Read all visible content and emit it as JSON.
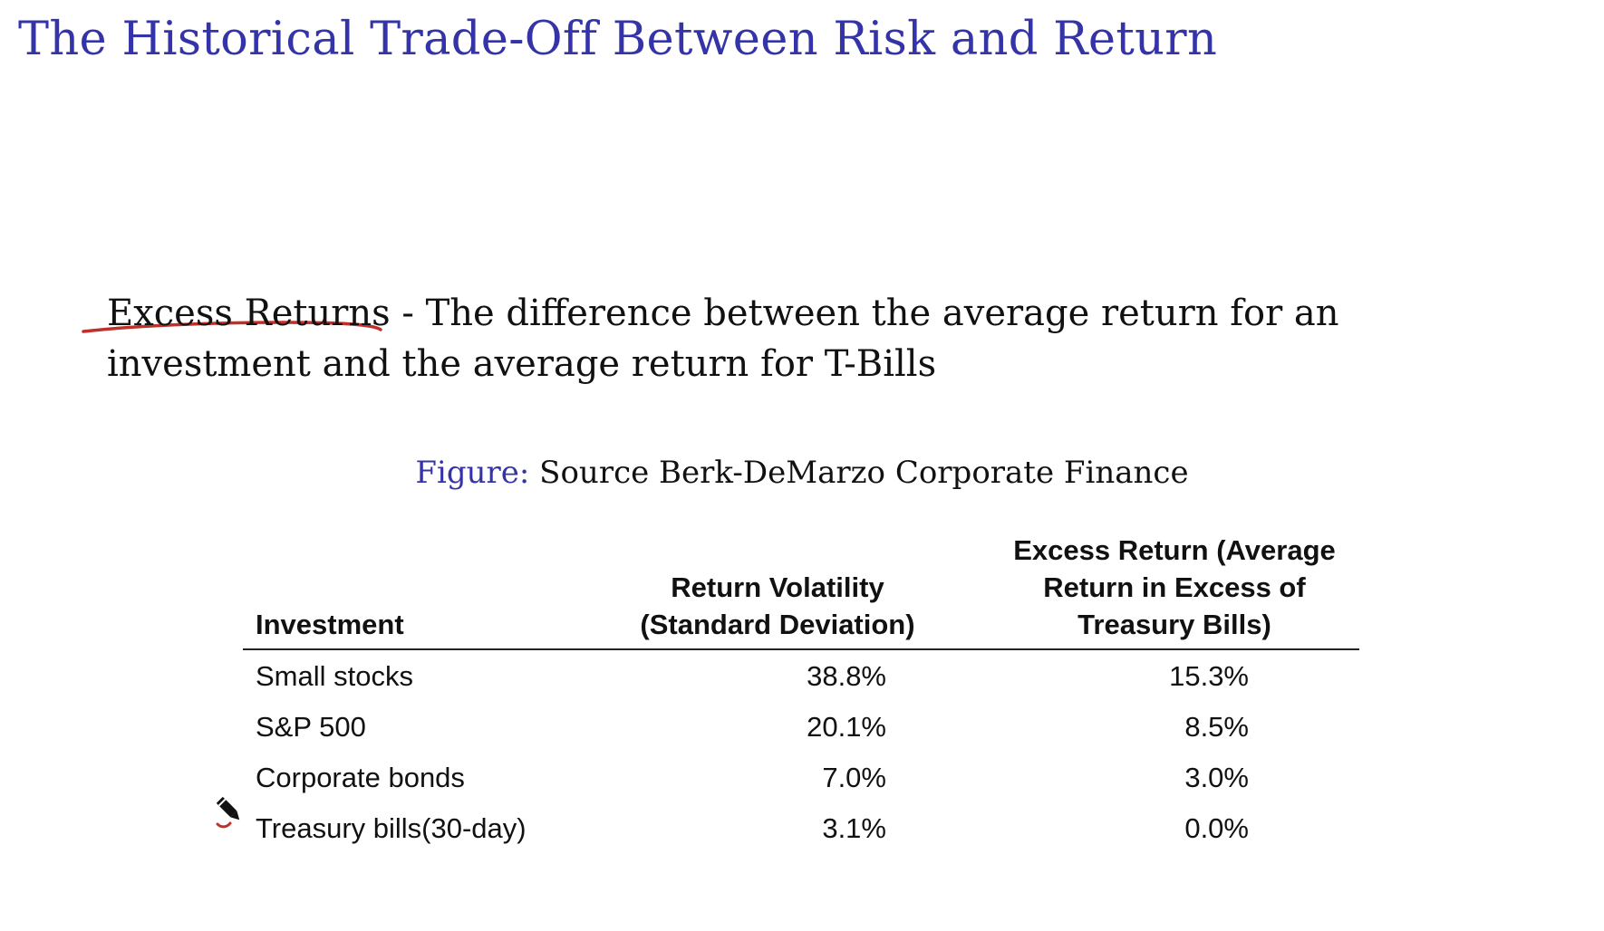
{
  "slide": {
    "title": "The Historical Trade-Off Between Risk and Return"
  },
  "definition": {
    "term": "Excess Returns",
    "separator": " - ",
    "text": "The difference between the average return for an investment and the average return for T-Bills"
  },
  "caption": {
    "label": "Figure:",
    "text": "Source Berk-DeMarzo Corporate Finance"
  },
  "table": {
    "headers": {
      "investment": "Investment",
      "volatility_line1": "Return Volatility",
      "volatility_line2": "(Standard Deviation)",
      "excess_line1": "Excess Return (Average",
      "excess_line2": "Return in Excess of",
      "excess_line3": "Treasury Bills)"
    },
    "rows": [
      {
        "investment": "Small stocks",
        "volatility": "38.8%",
        "excess": "15.3%"
      },
      {
        "investment": "S&P 500",
        "volatility": "20.1%",
        "excess": "8.5%"
      },
      {
        "investment": "Corporate bonds",
        "volatility": "7.0%",
        "excess": "3.0%"
      },
      {
        "investment": "Treasury bills(30-day)",
        "volatility": "3.1%",
        "excess": "0.0%"
      }
    ]
  },
  "annotations": {
    "underline_color": "#c0302a",
    "pencil_icon": "pencil-icon"
  }
}
